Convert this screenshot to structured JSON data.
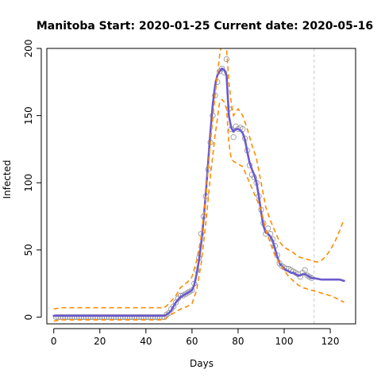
{
  "colors": {
    "fit_line": "#6a5acd",
    "bounds": "#ff8c00",
    "points": "#9a9a9a",
    "current_date_line": "#d3d3d3",
    "axis": "#000000"
  },
  "chart_data": {
    "type": "line",
    "title": "Manitoba Start:  2020-01-25   Current date:  2020-05-16",
    "xlabel": "Days",
    "ylabel": "Infected",
    "xlim": [
      -3,
      131
    ],
    "ylim": [
      -5,
      200
    ],
    "xticks": [
      0,
      20,
      40,
      60,
      80,
      100,
      120
    ],
    "yticks": [
      0,
      50,
      100,
      150,
      200
    ],
    "grid": false,
    "current_date_x": 113,
    "series": [
      {
        "role": "observed",
        "marker": "circle",
        "points": [
          [
            1,
            0
          ],
          [
            2,
            0
          ],
          [
            3,
            0
          ],
          [
            4,
            0
          ],
          [
            5,
            0
          ],
          [
            6,
            0
          ],
          [
            7,
            0
          ],
          [
            8,
            0
          ],
          [
            9,
            0
          ],
          [
            10,
            0
          ],
          [
            11,
            0
          ],
          [
            12,
            0
          ],
          [
            13,
            0
          ],
          [
            14,
            0
          ],
          [
            15,
            0
          ],
          [
            16,
            0
          ],
          [
            17,
            0
          ],
          [
            18,
            0
          ],
          [
            19,
            0
          ],
          [
            20,
            0
          ],
          [
            21,
            0
          ],
          [
            22,
            0
          ],
          [
            23,
            0
          ],
          [
            24,
            0
          ],
          [
            25,
            0
          ],
          [
            26,
            0
          ],
          [
            27,
            0
          ],
          [
            28,
            0
          ],
          [
            29,
            0
          ],
          [
            30,
            0
          ],
          [
            31,
            0
          ],
          [
            32,
            0
          ],
          [
            33,
            0
          ],
          [
            34,
            0
          ],
          [
            35,
            0
          ],
          [
            36,
            0
          ],
          [
            37,
            0
          ],
          [
            38,
            0
          ],
          [
            39,
            0
          ],
          [
            40,
            0
          ],
          [
            41,
            0
          ],
          [
            42,
            0
          ],
          [
            43,
            0
          ],
          [
            44,
            0
          ],
          [
            45,
            0
          ],
          [
            46,
            0
          ],
          [
            47,
            0
          ],
          [
            48,
            0
          ],
          [
            49,
            2
          ],
          [
            50,
            3
          ],
          [
            51,
            6
          ],
          [
            52,
            8
          ],
          [
            53,
            11
          ],
          [
            54,
            14
          ],
          [
            55,
            16
          ],
          [
            56,
            16
          ],
          [
            57,
            17
          ],
          [
            58,
            18
          ],
          [
            59,
            19
          ],
          [
            60,
            20
          ],
          [
            61,
            25
          ],
          [
            62,
            35
          ],
          [
            63,
            44
          ],
          [
            64,
            62
          ],
          [
            65,
            75
          ],
          [
            66,
            90
          ],
          [
            67,
            110
          ],
          [
            68,
            130
          ],
          [
            69,
            150
          ],
          [
            70,
            165
          ],
          [
            71,
            175
          ],
          [
            72,
            183
          ],
          [
            73,
            185
          ],
          [
            74,
            182
          ],
          [
            75,
            192
          ],
          [
            76,
            155
          ],
          [
            77,
            140
          ],
          [
            78,
            134
          ],
          [
            79,
            142
          ],
          [
            80,
            140
          ],
          [
            81,
            141
          ],
          [
            82,
            140
          ],
          [
            83,
            133
          ],
          [
            84,
            124
          ],
          [
            85,
            113
          ],
          [
            86,
            106
          ],
          [
            87,
            104
          ],
          [
            88,
            100
          ],
          [
            89,
            90
          ],
          [
            90,
            80
          ],
          [
            91,
            70
          ],
          [
            92,
            62
          ],
          [
            93,
            66
          ],
          [
            94,
            62
          ],
          [
            95,
            58
          ],
          [
            96,
            53
          ],
          [
            97,
            46
          ],
          [
            98,
            40
          ],
          [
            99,
            38
          ],
          [
            100,
            37
          ],
          [
            101,
            36
          ],
          [
            102,
            36
          ],
          [
            103,
            35
          ],
          [
            104,
            34
          ],
          [
            105,
            33
          ],
          [
            106,
            32
          ],
          [
            107,
            30
          ],
          [
            108,
            33
          ],
          [
            109,
            35
          ],
          [
            110,
            31
          ],
          [
            111,
            30
          ],
          [
            112,
            29
          ]
        ]
      },
      {
        "role": "fit",
        "marker": "line",
        "points": [
          [
            0,
            1
          ],
          [
            10,
            1
          ],
          [
            20,
            1
          ],
          [
            30,
            1
          ],
          [
            40,
            1
          ],
          [
            48,
            1
          ],
          [
            49,
            2
          ],
          [
            50,
            3
          ],
          [
            51,
            5
          ],
          [
            52,
            8
          ],
          [
            53,
            11
          ],
          [
            54,
            13
          ],
          [
            55,
            15
          ],
          [
            56,
            16
          ],
          [
            57,
            17
          ],
          [
            58,
            18
          ],
          [
            59,
            19
          ],
          [
            60,
            20
          ],
          [
            61,
            24
          ],
          [
            62,
            32
          ],
          [
            63,
            42
          ],
          [
            64,
            55
          ],
          [
            65,
            72
          ],
          [
            66,
            92
          ],
          [
            67,
            115
          ],
          [
            68,
            138
          ],
          [
            69,
            158
          ],
          [
            70,
            172
          ],
          [
            71,
            180
          ],
          [
            72,
            183
          ],
          [
            73,
            185
          ],
          [
            74,
            184
          ],
          [
            75,
            180
          ],
          [
            76,
            150
          ],
          [
            77,
            141
          ],
          [
            78,
            138
          ],
          [
            79,
            140
          ],
          [
            80,
            140
          ],
          [
            81,
            139
          ],
          [
            82,
            137
          ],
          [
            83,
            132
          ],
          [
            84,
            123
          ],
          [
            85,
            115
          ],
          [
            86,
            110
          ],
          [
            87,
            106
          ],
          [
            88,
            100
          ],
          [
            89,
            90
          ],
          [
            90,
            78
          ],
          [
            91,
            68
          ],
          [
            92,
            63
          ],
          [
            93,
            62
          ],
          [
            94,
            60
          ],
          [
            95,
            57
          ],
          [
            96,
            51
          ],
          [
            97,
            45
          ],
          [
            98,
            40
          ],
          [
            99,
            38
          ],
          [
            100,
            36
          ],
          [
            101,
            35
          ],
          [
            102,
            34
          ],
          [
            103,
            33
          ],
          [
            104,
            33
          ],
          [
            105,
            32
          ],
          [
            106,
            31
          ],
          [
            107,
            31
          ],
          [
            108,
            32
          ],
          [
            109,
            32
          ],
          [
            110,
            31
          ],
          [
            111,
            30
          ],
          [
            112,
            29
          ],
          [
            113,
            29
          ],
          [
            116,
            28
          ],
          [
            120,
            28
          ],
          [
            124,
            28
          ],
          [
            126,
            27
          ]
        ]
      },
      {
        "role": "upper_bound",
        "marker": "dashed",
        "points": [
          [
            0,
            6
          ],
          [
            3,
            7
          ],
          [
            10,
            7
          ],
          [
            20,
            7
          ],
          [
            30,
            7
          ],
          [
            40,
            7
          ],
          [
            48,
            7
          ],
          [
            50,
            10
          ],
          [
            53,
            16
          ],
          [
            55,
            22
          ],
          [
            58,
            26
          ],
          [
            60,
            30
          ],
          [
            62,
            42
          ],
          [
            64,
            60
          ],
          [
            66,
            90
          ],
          [
            68,
            130
          ],
          [
            70,
            165
          ],
          [
            72,
            195
          ],
          [
            73,
            205
          ],
          [
            74,
            210
          ],
          [
            75,
            200
          ],
          [
            76,
            175
          ],
          [
            77,
            160
          ],
          [
            78,
            150
          ],
          [
            80,
            155
          ],
          [
            82,
            150
          ],
          [
            84,
            140
          ],
          [
            86,
            128
          ],
          [
            88,
            118
          ],
          [
            90,
            100
          ],
          [
            92,
            82
          ],
          [
            94,
            72
          ],
          [
            96,
            64
          ],
          [
            98,
            56
          ],
          [
            100,
            52
          ],
          [
            102,
            50
          ],
          [
            104,
            48
          ],
          [
            106,
            45
          ],
          [
            108,
            44
          ],
          [
            110,
            43
          ],
          [
            112,
            42
          ],
          [
            114,
            41
          ],
          [
            116,
            42
          ],
          [
            118,
            45
          ],
          [
            120,
            50
          ],
          [
            122,
            56
          ],
          [
            124,
            64
          ],
          [
            126,
            73
          ]
        ]
      },
      {
        "role": "lower_bound",
        "marker": "dashed",
        "points": [
          [
            0,
            -3
          ],
          [
            3,
            -2
          ],
          [
            10,
            -2
          ],
          [
            20,
            -2
          ],
          [
            30,
            -2
          ],
          [
            40,
            -2
          ],
          [
            48,
            -2
          ],
          [
            50,
            1
          ],
          [
            53,
            4
          ],
          [
            55,
            6
          ],
          [
            58,
            8
          ],
          [
            60,
            10
          ],
          [
            62,
            20
          ],
          [
            64,
            40
          ],
          [
            66,
            70
          ],
          [
            68,
            105
          ],
          [
            70,
            135
          ],
          [
            72,
            160
          ],
          [
            73,
            162
          ],
          [
            74,
            160
          ],
          [
            75,
            155
          ],
          [
            76,
            130
          ],
          [
            77,
            118
          ],
          [
            78,
            116
          ],
          [
            80,
            114
          ],
          [
            82,
            112
          ],
          [
            84,
            104
          ],
          [
            86,
            96
          ],
          [
            88,
            88
          ],
          [
            90,
            80
          ],
          [
            92,
            65
          ],
          [
            94,
            55
          ],
          [
            96,
            46
          ],
          [
            98,
            40
          ],
          [
            100,
            35
          ],
          [
            102,
            30
          ],
          [
            104,
            27
          ],
          [
            106,
            24
          ],
          [
            108,
            22
          ],
          [
            110,
            21
          ],
          [
            112,
            20
          ],
          [
            116,
            18
          ],
          [
            120,
            16
          ],
          [
            124,
            13
          ],
          [
            126,
            11
          ]
        ]
      }
    ]
  }
}
